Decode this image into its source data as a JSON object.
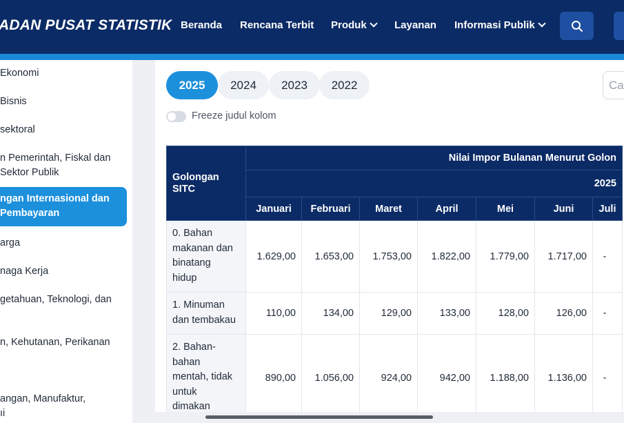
{
  "header": {
    "brand": "ADAN PUSAT STATISTIK",
    "nav": [
      {
        "label": "Beranda",
        "has_dropdown": false
      },
      {
        "label": "Rencana Terbit",
        "has_dropdown": false
      },
      {
        "label": "Produk",
        "has_dropdown": true
      },
      {
        "label": "Layanan",
        "has_dropdown": false
      },
      {
        "label": "Informasi Publik",
        "has_dropdown": true
      }
    ],
    "search_icon": "search-icon"
  },
  "sidebar": {
    "items": [
      {
        "lines": [
          "Ekonomi"
        ]
      },
      {
        "lines": [
          "Bisnis"
        ]
      },
      {
        "lines": [
          "sektoral"
        ]
      },
      {
        "lines": [
          "n Pemerintah, Fiskal dan",
          "Sektor Publik"
        ]
      },
      {
        "lines": [
          "ngan Internasional dan",
          "Pembayaran"
        ],
        "active": true
      },
      {
        "lines": [
          "arga"
        ]
      },
      {
        "lines": [
          "naga Kerja"
        ]
      },
      {
        "lines": [
          "getahuan, Teknologi, dan"
        ]
      },
      {
        "lines": [
          "n, Kehutanan, Perikanan"
        ]
      },
      {
        "lines": [
          "angan, Manufaktur,",
          "ıi"
        ]
      }
    ]
  },
  "main": {
    "years": [
      "2025",
      "2024",
      "2023",
      "2022"
    ],
    "active_year": "2025",
    "search_placeholder": "Ca",
    "freeze_label": "Freeze judul kolom",
    "table": {
      "row_header": [
        "Golongan",
        "SITC"
      ],
      "super_title": "Nilai Impor Bulanan Menurut Golon",
      "year_label": "2025",
      "months": [
        "Januari",
        "Februari",
        "Maret",
        "April",
        "Mei",
        "Juni",
        "Juli"
      ],
      "rows": [
        {
          "label_lines": [
            "0. Bahan",
            "makanan dan",
            "binatang",
            "hidup"
          ],
          "values": [
            "1.629,00",
            "1.653,00",
            "1.753,00",
            "1.822,00",
            "1.779,00",
            "1.717,00",
            "-"
          ]
        },
        {
          "label_lines": [
            "1. Minuman",
            "dan tembakau"
          ],
          "values": [
            "110,00",
            "134,00",
            "129,00",
            "133,00",
            "128,00",
            "126,00",
            "-"
          ]
        },
        {
          "label_lines": [
            "2. Bahan-",
            "bahan",
            "mentah, tidak",
            "untuk",
            "dimakan"
          ],
          "values": [
            "890,00",
            "1.056,00",
            "924,00",
            "942,00",
            "1.188,00",
            "1.136,00",
            "-"
          ]
        }
      ]
    }
  },
  "colors": {
    "header_bg": "#0b2b66",
    "accent": "#1d90dc",
    "table_header": "#0b2b66"
  }
}
